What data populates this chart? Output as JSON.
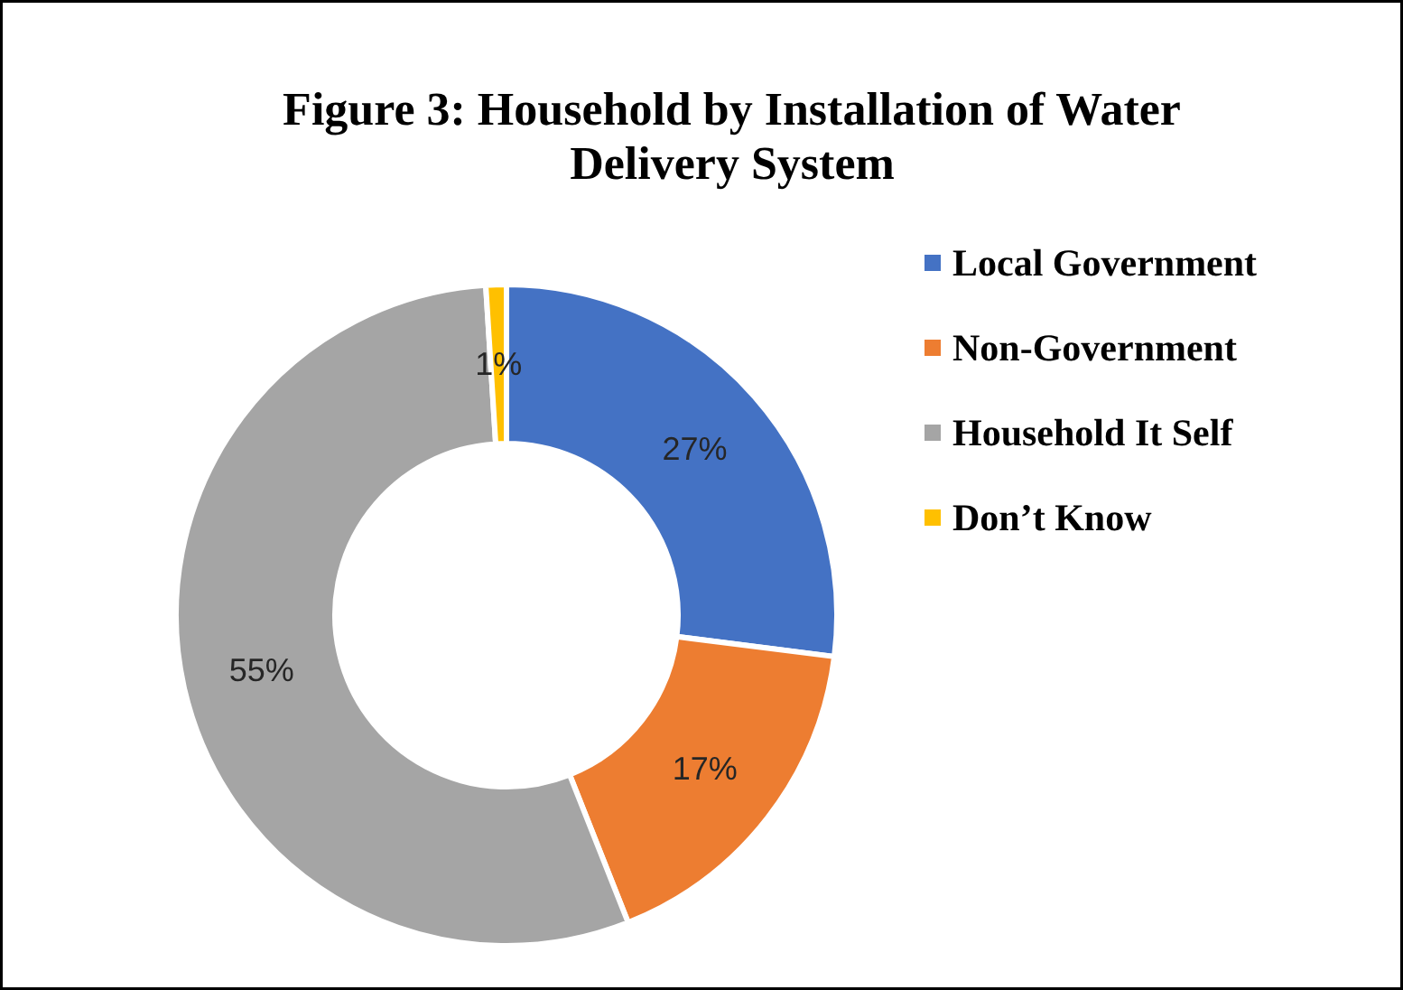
{
  "chart_data": {
    "type": "donut",
    "title": "Figure 3: Household by Installation of Water Delivery System",
    "categories": [
      "Local Government",
      "Non-Government",
      "Household It Self",
      "Don’t Know"
    ],
    "values": [
      27,
      17,
      55,
      1
    ],
    "colors": [
      "#4472c4",
      "#ed7d31",
      "#a5a5a5",
      "#ffc000"
    ],
    "value_labels": [
      "27%",
      "17%",
      "55%",
      "1%"
    ],
    "legend": "right"
  }
}
